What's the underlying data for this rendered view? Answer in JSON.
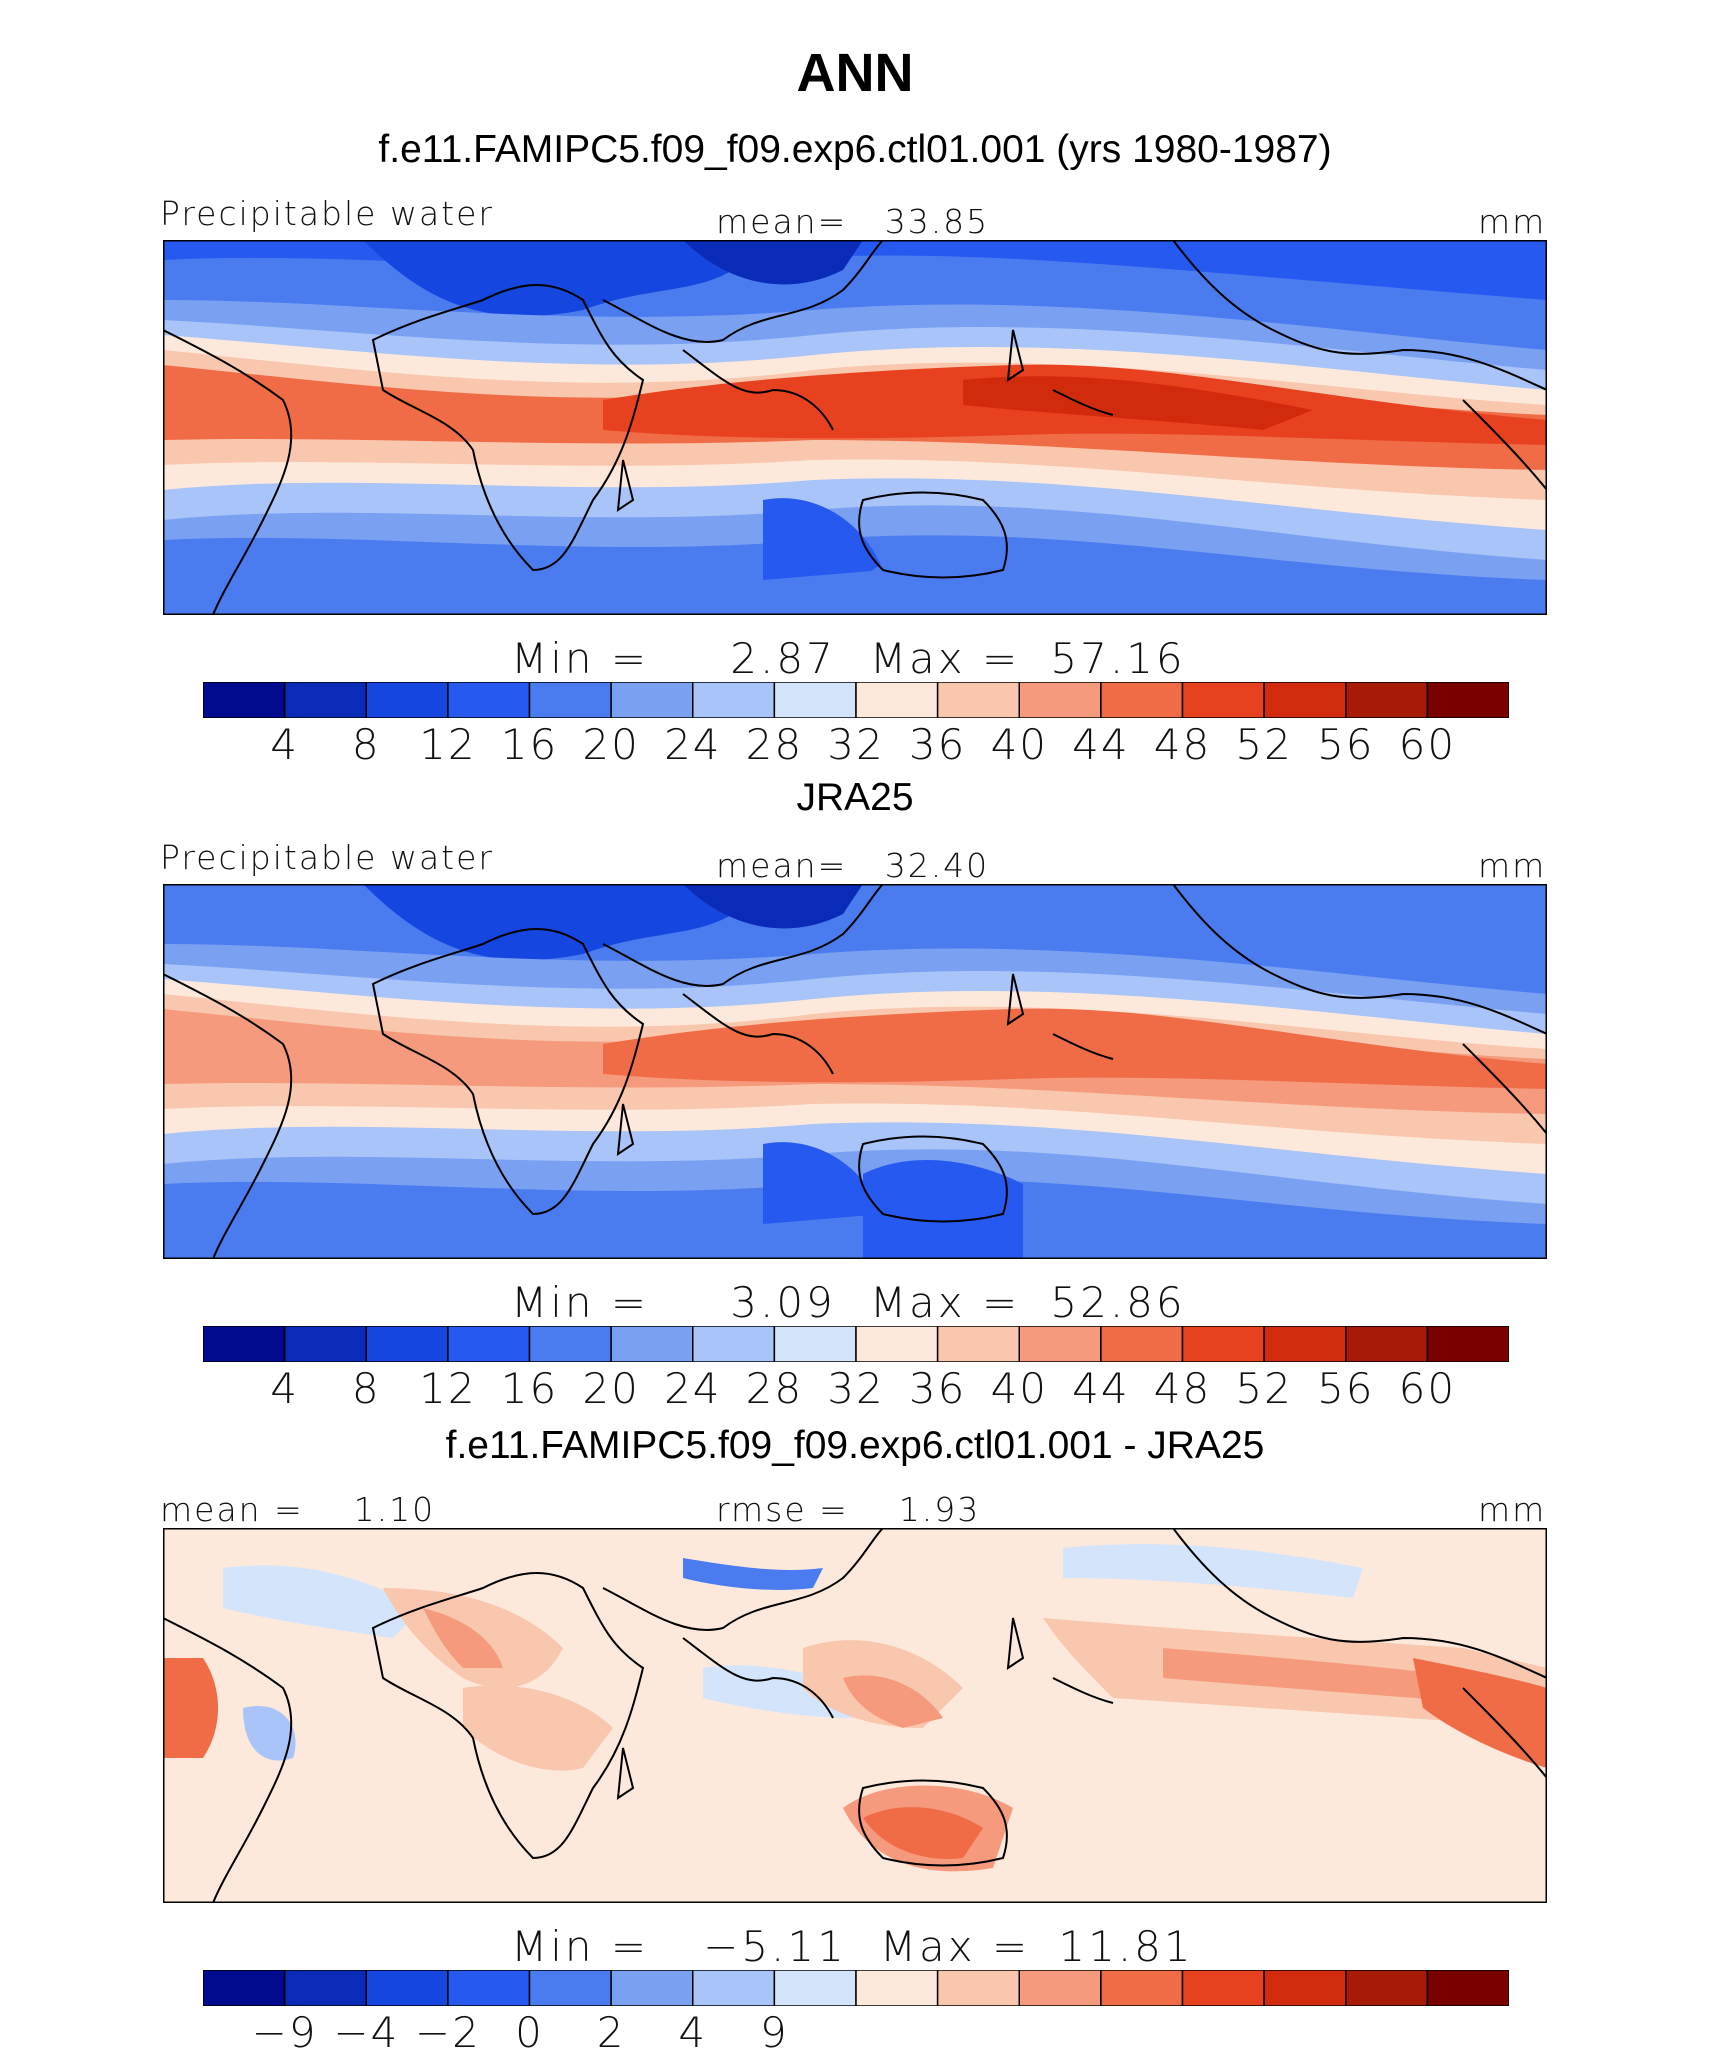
{
  "figure": {
    "title": "ANN"
  },
  "colors": {
    "palette": [
      "#000b8f",
      "#0a2bb8",
      "#1546e0",
      "#2659f0",
      "#4a7cf0",
      "#7aa0f2",
      "#a8c4f8",
      "#d4e4fb",
      "#fde9dc",
      "#f9c6ae",
      "#f59a7c",
      "#f06c47",
      "#e8411f",
      "#d12a0c",
      "#a81a08",
      "#7a0000"
    ]
  },
  "chart_data": [
    {
      "type": "heatmap",
      "title": "f.e11.FAMIPC5.f09_f09.exp6.ctl01.001 (yrs 1980-1987)",
      "variable": "Precipitable water",
      "header_center": "mean=   33.85",
      "units": "mm",
      "stat_min_label": "Min  =",
      "stat_min": "2.87",
      "stat_max_label": "Max  =",
      "stat_max": "57.16",
      "mean": 33.85,
      "min": 2.87,
      "max": 57.16,
      "colorbar_ticks": [
        "4",
        "8",
        "12",
        "16",
        "20",
        "24",
        "28",
        "32",
        "36",
        "40",
        "44",
        "48",
        "52",
        "56",
        "60"
      ],
      "legend": "bottom"
    },
    {
      "type": "heatmap",
      "title": "JRA25",
      "variable": "Precipitable water",
      "header_center": "mean=   32.40",
      "units": "mm",
      "stat_min_label": "Min  =",
      "stat_min": "3.09",
      "stat_max_label": "Max  =",
      "stat_max": "52.86",
      "mean": 32.4,
      "min": 3.09,
      "max": 52.86,
      "colorbar_ticks": [
        "4",
        "8",
        "12",
        "16",
        "20",
        "24",
        "28",
        "32",
        "36",
        "40",
        "44",
        "48",
        "52",
        "56",
        "60"
      ],
      "legend": "bottom"
    },
    {
      "type": "heatmap",
      "title": "f.e11.FAMIPC5.f09_f09.exp6.ctl01.001 - JRA25",
      "header_left": "mean =    1.10",
      "header_center": "rmse =    1.93",
      "units": "mm",
      "stat_min_label": "Min  =",
      "stat_min": "−5.11",
      "stat_max_label": "Max  =",
      "stat_max": "11.81",
      "mean": 1.1,
      "rmse": 1.93,
      "min": -5.11,
      "max": 11.81,
      "colorbar_ticks": [
        "−9",
        "−4",
        "−2",
        "0",
        "2",
        "4",
        "9"
      ],
      "legend": "bottom"
    }
  ]
}
